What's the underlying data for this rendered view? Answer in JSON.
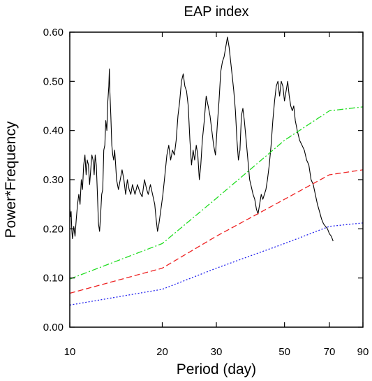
{
  "chart_data": {
    "type": "line",
    "title": "EAP index",
    "xlabel": "Period (day)",
    "ylabel": "Power*Frequency",
    "x_scale": "log",
    "xlim": [
      10,
      90
    ],
    "ylim": [
      0,
      0.6
    ],
    "x_ticks": [
      10,
      20,
      30,
      50,
      70,
      90
    ],
    "x_tick_labels": [
      "10",
      "20",
      "30",
      "50",
      "70",
      "90"
    ],
    "y_ticks": [
      0,
      0.1,
      0.2,
      0.3,
      0.4,
      0.5,
      0.6
    ],
    "y_tick_labels": [
      "0.00",
      "0.10",
      "0.20",
      "0.30",
      "0.40",
      "0.50",
      "0.60"
    ],
    "grid": false,
    "series": [
      {
        "style": "solid",
        "color": "#000000",
        "points": [
          [
            10.0,
            0.24
          ],
          [
            10.05,
            0.225
          ],
          [
            10.1,
            0.235
          ],
          [
            10.15,
            0.2
          ],
          [
            10.2,
            0.18
          ],
          [
            10.3,
            0.205
          ],
          [
            10.4,
            0.185
          ],
          [
            10.5,
            0.22
          ],
          [
            10.6,
            0.25
          ],
          [
            10.7,
            0.27
          ],
          [
            10.8,
            0.25
          ],
          [
            10.9,
            0.3
          ],
          [
            11.0,
            0.28
          ],
          [
            11.1,
            0.33
          ],
          [
            11.2,
            0.35
          ],
          [
            11.3,
            0.31
          ],
          [
            11.4,
            0.34
          ],
          [
            11.5,
            0.33
          ],
          [
            11.6,
            0.29
          ],
          [
            11.7,
            0.32
          ],
          [
            11.8,
            0.35
          ],
          [
            11.9,
            0.34
          ],
          [
            12.0,
            0.31
          ],
          [
            12.1,
            0.35
          ],
          [
            12.2,
            0.33
          ],
          [
            12.3,
            0.27
          ],
          [
            12.4,
            0.21
          ],
          [
            12.5,
            0.195
          ],
          [
            12.6,
            0.23
          ],
          [
            12.7,
            0.27
          ],
          [
            12.8,
            0.28
          ],
          [
            12.9,
            0.36
          ],
          [
            13.0,
            0.37
          ],
          [
            13.1,
            0.42
          ],
          [
            13.2,
            0.4
          ],
          [
            13.3,
            0.46
          ],
          [
            13.4,
            0.49
          ],
          [
            13.45,
            0.525
          ],
          [
            13.5,
            0.48
          ],
          [
            13.6,
            0.43
          ],
          [
            13.7,
            0.37
          ],
          [
            13.8,
            0.35
          ],
          [
            13.9,
            0.34
          ],
          [
            14.0,
            0.36
          ],
          [
            14.1,
            0.33
          ],
          [
            14.2,
            0.3
          ],
          [
            14.4,
            0.28
          ],
          [
            14.6,
            0.3
          ],
          [
            14.8,
            0.32
          ],
          [
            15.0,
            0.3
          ],
          [
            15.2,
            0.27
          ],
          [
            15.4,
            0.3
          ],
          [
            15.6,
            0.28
          ],
          [
            15.8,
            0.27
          ],
          [
            16.0,
            0.29
          ],
          [
            16.3,
            0.27
          ],
          [
            16.6,
            0.29
          ],
          [
            16.9,
            0.275
          ],
          [
            17.2,
            0.265
          ],
          [
            17.5,
            0.3
          ],
          [
            17.8,
            0.28
          ],
          [
            18.0,
            0.27
          ],
          [
            18.3,
            0.29
          ],
          [
            18.6,
            0.27
          ],
          [
            18.9,
            0.25
          ],
          [
            19.1,
            0.22
          ],
          [
            19.3,
            0.195
          ],
          [
            19.5,
            0.21
          ],
          [
            19.8,
            0.24
          ],
          [
            20.1,
            0.27
          ],
          [
            20.4,
            0.31
          ],
          [
            20.7,
            0.35
          ],
          [
            21.0,
            0.37
          ],
          [
            21.3,
            0.34
          ],
          [
            21.6,
            0.36
          ],
          [
            21.9,
            0.35
          ],
          [
            22.2,
            0.38
          ],
          [
            22.5,
            0.43
          ],
          [
            22.8,
            0.46
          ],
          [
            23.1,
            0.5
          ],
          [
            23.4,
            0.515
          ],
          [
            23.7,
            0.49
          ],
          [
            24.0,
            0.48
          ],
          [
            24.3,
            0.45
          ],
          [
            24.6,
            0.38
          ],
          [
            24.9,
            0.33
          ],
          [
            25.2,
            0.36
          ],
          [
            25.5,
            0.34
          ],
          [
            25.8,
            0.37
          ],
          [
            26.1,
            0.35
          ],
          [
            26.4,
            0.3
          ],
          [
            26.7,
            0.33
          ],
          [
            27.0,
            0.38
          ],
          [
            27.4,
            0.42
          ],
          [
            27.8,
            0.47
          ],
          [
            28.2,
            0.45
          ],
          [
            28.6,
            0.43
          ],
          [
            29.0,
            0.4
          ],
          [
            29.4,
            0.37
          ],
          [
            29.8,
            0.35
          ],
          [
            30.2,
            0.41
          ],
          [
            30.6,
            0.46
          ],
          [
            31.0,
            0.52
          ],
          [
            31.4,
            0.54
          ],
          [
            31.8,
            0.55
          ],
          [
            32.2,
            0.57
          ],
          [
            32.6,
            0.59
          ],
          [
            33.0,
            0.57
          ],
          [
            33.4,
            0.54
          ],
          [
            33.8,
            0.51
          ],
          [
            34.2,
            0.48
          ],
          [
            34.6,
            0.44
          ],
          [
            35.0,
            0.38
          ],
          [
            35.4,
            0.34
          ],
          [
            35.8,
            0.36
          ],
          [
            36.2,
            0.43
          ],
          [
            36.6,
            0.445
          ],
          [
            37.0,
            0.42
          ],
          [
            37.5,
            0.38
          ],
          [
            38.0,
            0.34
          ],
          [
            38.5,
            0.3
          ],
          [
            39.0,
            0.285
          ],
          [
            39.5,
            0.27
          ],
          [
            40.0,
            0.26
          ],
          [
            40.5,
            0.24
          ],
          [
            41.0,
            0.23
          ],
          [
            41.5,
            0.25
          ],
          [
            42.0,
            0.27
          ],
          [
            42.5,
            0.26
          ],
          [
            43.0,
            0.27
          ],
          [
            43.5,
            0.28
          ],
          [
            44.0,
            0.3
          ],
          [
            44.6,
            0.33
          ],
          [
            45.2,
            0.37
          ],
          [
            45.8,
            0.42
          ],
          [
            46.4,
            0.46
          ],
          [
            47.0,
            0.49
          ],
          [
            47.6,
            0.5
          ],
          [
            48.2,
            0.47
          ],
          [
            48.8,
            0.5
          ],
          [
            49.4,
            0.49
          ],
          [
            50.0,
            0.46
          ],
          [
            50.6,
            0.48
          ],
          [
            51.2,
            0.5
          ],
          [
            51.8,
            0.47
          ],
          [
            52.4,
            0.45
          ],
          [
            53.0,
            0.44
          ],
          [
            53.6,
            0.45
          ],
          [
            54.2,
            0.42
          ],
          [
            55.0,
            0.4
          ],
          [
            56.0,
            0.38
          ],
          [
            57.0,
            0.37
          ],
          [
            58.0,
            0.36
          ],
          [
            59.0,
            0.34
          ],
          [
            60.0,
            0.33
          ],
          [
            61.0,
            0.3
          ],
          [
            62.0,
            0.29
          ],
          [
            63.0,
            0.27
          ],
          [
            64.0,
            0.25
          ],
          [
            65.0,
            0.235
          ],
          [
            66.0,
            0.22
          ],
          [
            67.0,
            0.21
          ],
          [
            68.0,
            0.205
          ],
          [
            69.0,
            0.2
          ],
          [
            70.0,
            0.19
          ],
          [
            71.0,
            0.185
          ],
          [
            72.0,
            0.175
          ]
        ]
      },
      {
        "style": "dash-dot",
        "color": "#22dd22",
        "points": [
          [
            10,
            0.098
          ],
          [
            20,
            0.17
          ],
          [
            30,
            0.262
          ],
          [
            50,
            0.38
          ],
          [
            70,
            0.44
          ],
          [
            90,
            0.448
          ]
        ]
      },
      {
        "style": "dashed",
        "color": "#ee2222",
        "points": [
          [
            10,
            0.069
          ],
          [
            20,
            0.12
          ],
          [
            30,
            0.185
          ],
          [
            50,
            0.26
          ],
          [
            70,
            0.31
          ],
          [
            90,
            0.32
          ]
        ]
      },
      {
        "style": "dotted",
        "color": "#2222ee",
        "points": [
          [
            10,
            0.045
          ],
          [
            20,
            0.077
          ],
          [
            30,
            0.12
          ],
          [
            50,
            0.17
          ],
          [
            70,
            0.205
          ],
          [
            90,
            0.212
          ]
        ]
      }
    ]
  }
}
